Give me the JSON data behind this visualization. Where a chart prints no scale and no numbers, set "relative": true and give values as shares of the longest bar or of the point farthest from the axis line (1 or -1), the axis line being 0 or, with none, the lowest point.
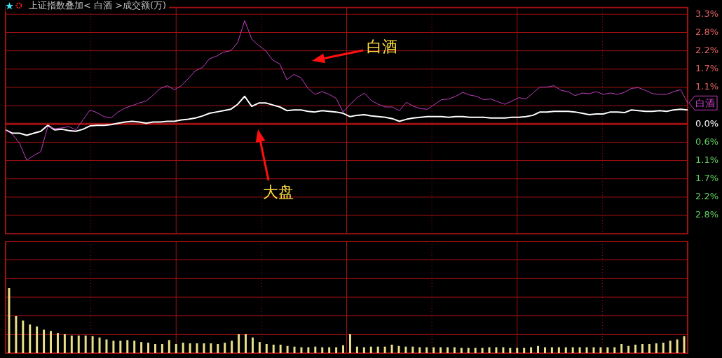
{
  "chart_data": [
    {
      "type": "line",
      "title": "上证指数叠加< 白酒 >成交额(万)",
      "categories": [
        null,
        null,
        null,
        null,
        null,
        null,
        null,
        null,
        null,
        null,
        null,
        null,
        null,
        null,
        null,
        null,
        null,
        null,
        null,
        null,
        null,
        null,
        null,
        null,
        null,
        null,
        null,
        null,
        null,
        null,
        null,
        null,
        null,
        null,
        null,
        null,
        null,
        null,
        null,
        null,
        null,
        null,
        null,
        null,
        null,
        null,
        null,
        null,
        null,
        null,
        null,
        null,
        null,
        null,
        null,
        null,
        null,
        null,
        null,
        null,
        null,
        null,
        null,
        null,
        null,
        null,
        null,
        null,
        null,
        null,
        null,
        null,
        null,
        null,
        null,
        null,
        null,
        null,
        null,
        null,
        null,
        null,
        null,
        null,
        null,
        null,
        null,
        null,
        null,
        null,
        null,
        null,
        null,
        null,
        null,
        null,
        null,
        null
      ],
      "series": [
        {
          "name": "白酒",
          "color": "#c040c0",
          "values": [
            -0.18,
            -0.32,
            -0.59,
            -1.09,
            -0.95,
            -0.83,
            -0.08,
            -0.14,
            -0.12,
            -0.08,
            -0.18,
            0.12,
            0.42,
            0.34,
            0.22,
            0.18,
            0.36,
            0.48,
            0.55,
            0.63,
            0.69,
            0.87,
            1.07,
            1.15,
            1.03,
            1.15,
            1.37,
            1.6,
            1.7,
            1.96,
            2.04,
            2.16,
            2.2,
            2.44,
            3.11,
            2.55,
            2.36,
            2.2,
            1.92,
            1.8,
            1.33,
            1.49,
            1.39,
            1.07,
            0.89,
            0.97,
            0.89,
            0.77,
            0.36,
            0.59,
            0.79,
            0.93,
            0.71,
            0.59,
            0.51,
            0.51,
            0.4,
            0.65,
            0.53,
            0.46,
            0.44,
            0.59,
            0.73,
            0.75,
            0.83,
            0.95,
            0.87,
            0.83,
            0.73,
            0.75,
            0.67,
            0.59,
            0.69,
            0.79,
            0.75,
            0.93,
            1.11,
            1.11,
            1.15,
            1.01,
            0.97,
            0.85,
            0.93,
            0.91,
            0.97,
            0.89,
            0.93,
            0.89,
            0.95,
            1.07,
            1.09,
            1.01,
            0.91,
            0.89,
            0.89,
            0.97,
            1.03,
            0.63
          ]
        },
        {
          "name": "大盘",
          "color": "#ffffff",
          "values": [
            -0.18,
            -0.28,
            -0.28,
            -0.34,
            -0.28,
            -0.22,
            -0.04,
            -0.18,
            -0.16,
            -0.2,
            -0.22,
            -0.16,
            -0.06,
            -0.04,
            -0.04,
            -0.02,
            0.02,
            0.06,
            0.08,
            0.06,
            0.02,
            0.06,
            0.06,
            0.08,
            0.08,
            0.12,
            0.14,
            0.18,
            0.24,
            0.32,
            0.36,
            0.4,
            0.44,
            0.59,
            0.83,
            0.53,
            0.63,
            0.63,
            0.57,
            0.51,
            0.4,
            0.42,
            0.42,
            0.38,
            0.36,
            0.4,
            0.38,
            0.36,
            0.32,
            0.22,
            0.26,
            0.28,
            0.24,
            0.22,
            0.2,
            0.16,
            0.08,
            0.14,
            0.18,
            0.2,
            0.22,
            0.22,
            0.22,
            0.2,
            0.22,
            0.22,
            0.2,
            0.2,
            0.2,
            0.18,
            0.18,
            0.18,
            0.2,
            0.2,
            0.22,
            0.26,
            0.36,
            0.36,
            0.38,
            0.38,
            0.38,
            0.36,
            0.32,
            0.28,
            0.3,
            0.3,
            0.36,
            0.36,
            0.34,
            0.42,
            0.4,
            0.38,
            0.38,
            0.4,
            0.38,
            0.42,
            0.44,
            0.42
          ]
        }
      ],
      "ylim": [
        -3.3,
        3.5
      ],
      "yticks": [
        {
          "value": 3.3,
          "label": "3.3%"
        },
        {
          "value": 2.75,
          "label": "2.8%"
        },
        {
          "value": 2.2,
          "label": "2.2%"
        },
        {
          "value": 1.65,
          "label": "1.7%"
        },
        {
          "value": 1.1,
          "label": "1.1%"
        },
        {
          "value": 0.55,
          "label": null
        },
        {
          "value": 0,
          "label": "0.0%"
        },
        {
          "value": -0.55,
          "label": "0.6%"
        },
        {
          "value": -1.1,
          "label": "1.1%"
        },
        {
          "value": -1.65,
          "label": "1.7%"
        },
        {
          "value": -2.2,
          "label": "2.2%"
        },
        {
          "value": -2.75,
          "label": "2.8%"
        }
      ],
      "annotations": [
        "白酒"
      ],
      "ref_lines": [
        {
          "axis": "y",
          "value": 0,
          "color": "#a01010"
        }
      ],
      "grid": true,
      "legend": false,
      "tick_labels": "y",
      "marker": "none",
      "line_style": "solid"
    },
    {
      "type": "bar",
      "relative": true,
      "categories": [
        null,
        null,
        null,
        null,
        null,
        null,
        null,
        null,
        null,
        null,
        null,
        null,
        null,
        null,
        null,
        null,
        null,
        null,
        null,
        null,
        null,
        null,
        null,
        null,
        null,
        null,
        null,
        null,
        null,
        null,
        null,
        null,
        null,
        null,
        null,
        null,
        null,
        null,
        null,
        null,
        null,
        null,
        null,
        null,
        null,
        null,
        null,
        null,
        null,
        null,
        null,
        null,
        null,
        null,
        null,
        null,
        null,
        null,
        null,
        null,
        null,
        null,
        null,
        null,
        null,
        null,
        null,
        null,
        null,
        null,
        null,
        null,
        null,
        null,
        null,
        null,
        null,
        null,
        null,
        null,
        null,
        null,
        null,
        null,
        null,
        null,
        null,
        null,
        null,
        null,
        null,
        null,
        null,
        null,
        null,
        null,
        null,
        null
      ],
      "values": [
        1,
        0.57,
        0.5,
        0.44,
        0.41,
        0.36,
        0.34,
        0.31,
        0.29,
        0.27,
        0.27,
        0.27,
        0.26,
        0.24,
        0.21,
        0.19,
        0.19,
        0.2,
        0.19,
        0.17,
        0.16,
        0.14,
        0.14,
        0.2,
        0.14,
        0.16,
        0.15,
        0.15,
        0.15,
        0.15,
        0.14,
        0.16,
        0.19,
        0.29,
        0.29,
        0.24,
        0.17,
        0.14,
        0.13,
        0.13,
        0.11,
        0.1,
        0.09,
        0.09,
        0.1,
        0.09,
        0.09,
        0.09,
        0.12,
        0.29,
        0.1,
        0.09,
        0.1,
        0.1,
        0.1,
        0.13,
        0.11,
        0.1,
        0.1,
        0.09,
        0.09,
        0.09,
        0.09,
        0.09,
        0.09,
        0.08,
        0.08,
        0.08,
        0.08,
        0.09,
        0.09,
        0.09,
        0.08,
        0.08,
        0.08,
        0.09,
        0.11,
        0.09,
        0.09,
        0.09,
        0.09,
        0.09,
        0.09,
        0.09,
        0.09,
        0.09,
        0.09,
        0.09,
        0.14,
        0.11,
        0.13,
        0.14,
        0.14,
        0.15,
        0.16,
        0.19,
        0.21,
        0.26
      ],
      "color": "#e8e08a",
      "grid": true,
      "legend": false,
      "tick_labels": false
    }
  ]
}
